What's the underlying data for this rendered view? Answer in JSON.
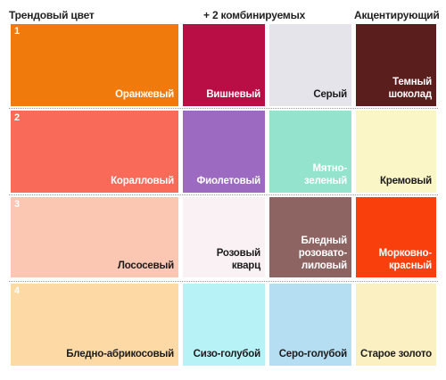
{
  "headers": {
    "trend": "Трендовый цвет",
    "combo": "+ 2 комбинируемых",
    "accent": "Акцентирующий"
  },
  "rows": [
    {
      "number": "1",
      "swatches": [
        {
          "label": "Оранжевый",
          "color": "#f07a0c",
          "text": "light"
        },
        {
          "label": "Вишневый",
          "color": "#b80d45",
          "text": "light"
        },
        {
          "label": "Серый",
          "color": "#e4e4ea",
          "text": "dark"
        },
        {
          "label": "Темный\nшоколад",
          "color": "#5a1e1c",
          "text": "light"
        }
      ]
    },
    {
      "number": "2",
      "swatches": [
        {
          "label": "Коралловый",
          "color": "#f96a58",
          "text": "light"
        },
        {
          "label": "Фиолетовый",
          "color": "#9c6ac0",
          "text": "light"
        },
        {
          "label": "Мятно-\nзеленый",
          "color": "#93e3cd",
          "text": "light"
        },
        {
          "label": "Кремовый",
          "color": "#fbf6c6",
          "text": "dark"
        }
      ]
    },
    {
      "number": "3",
      "swatches": [
        {
          "label": "Лососевый",
          "color": "#fbc6b2",
          "text": "dark"
        },
        {
          "label": "Розовый\nкварц",
          "color": "#faf1f4",
          "text": "dark"
        },
        {
          "label": "Бледный\nрозовато-\nлиловый",
          "color": "#8e6462",
          "text": "light"
        },
        {
          "label": "Морковно-\nкрасный",
          "color": "#f9400c",
          "text": "light"
        }
      ]
    },
    {
      "number": "4",
      "swatches": [
        {
          "label": "Бледно-абрикосовый",
          "color": "#fdd9a6",
          "text": "dark"
        },
        {
          "label": "Сизо-голубой",
          "color": "#b6f2f6",
          "text": "dark"
        },
        {
          "label": "Серо-голубой",
          "color": "#b6def2",
          "text": "dark"
        },
        {
          "label": "Старое золото",
          "color": "#fbf0c2",
          "text": "dark"
        }
      ]
    }
  ]
}
